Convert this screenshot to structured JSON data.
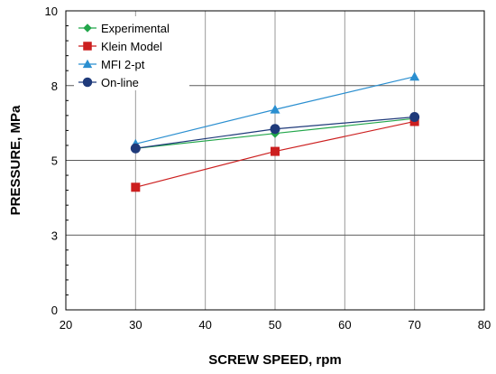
{
  "chart_data": {
    "type": "line",
    "xlabel": "SCREW SPEED, rpm",
    "ylabel": "PRESSURE, MPa",
    "xlim": [
      20,
      80
    ],
    "ylim": [
      0,
      10
    ],
    "xticks": [
      20,
      30,
      40,
      50,
      60,
      70,
      80
    ],
    "yticks": [
      0,
      2.5,
      5,
      7.5,
      10
    ],
    "ytick_labels": [
      "0",
      "3",
      "5",
      "8",
      "10"
    ],
    "grid": true,
    "legend_position": "top-left",
    "series": [
      {
        "name": "Experimental",
        "x": [
          30,
          50,
          70
        ],
        "y": [
          5.4,
          5.9,
          6.4
        ],
        "color": "#22a64a",
        "marker": "diamond"
      },
      {
        "name": "Klein Model",
        "x": [
          30,
          50,
          70
        ],
        "y": [
          4.1,
          5.3,
          6.3
        ],
        "color": "#cc1f1f",
        "marker": "square"
      },
      {
        "name": "MFI 2-pt",
        "x": [
          30,
          50,
          70
        ],
        "y": [
          5.55,
          6.7,
          7.8
        ],
        "color": "#2b8fd0",
        "marker": "triangle"
      },
      {
        "name": "On-line",
        "x": [
          30,
          50,
          70
        ],
        "y": [
          5.4,
          6.05,
          6.45
        ],
        "color": "#1f3a7a",
        "marker": "circle"
      }
    ]
  }
}
